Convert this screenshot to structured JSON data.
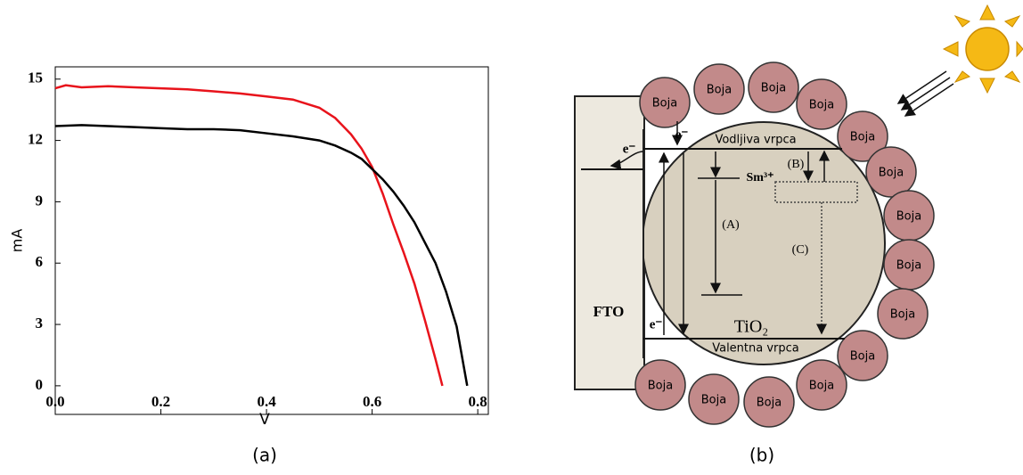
{
  "chart_data": {
    "type": "line",
    "xlabel": "V",
    "ylabel": "mA",
    "xlim": [
      0,
      0.82
    ],
    "ylim": [
      -1.4,
      15.6
    ],
    "xticks": [
      {
        "value": 0,
        "label": "0.0"
      },
      0.2,
      0.4,
      0.6,
      0.8
    ],
    "yticks": [
      0,
      3,
      6,
      9,
      12,
      15
    ],
    "grid": false,
    "series": [
      {
        "color": "#e8131b",
        "x": [
          0,
          0.02,
          0.05,
          0.1,
          0.15,
          0.2,
          0.25,
          0.3,
          0.35,
          0.4,
          0.45,
          0.5,
          0.53,
          0.56,
          0.58,
          0.6,
          0.62,
          0.64,
          0.66,
          0.68,
          0.7,
          0.72,
          0.733
        ],
        "values": [
          14.55,
          14.7,
          14.6,
          14.65,
          14.6,
          14.55,
          14.5,
          14.4,
          14.3,
          14.15,
          14.0,
          13.6,
          13.1,
          12.3,
          11.6,
          10.7,
          9.4,
          7.9,
          6.5,
          5.0,
          3.2,
          1.3,
          0
        ]
      },
      {
        "color": "#000000",
        "x": [
          0,
          0.05,
          0.1,
          0.15,
          0.2,
          0.25,
          0.3,
          0.35,
          0.4,
          0.45,
          0.5,
          0.53,
          0.56,
          0.58,
          0.6,
          0.62,
          0.64,
          0.66,
          0.68,
          0.7,
          0.72,
          0.74,
          0.76,
          0.78
        ],
        "values": [
          12.7,
          12.75,
          12.7,
          12.65,
          12.6,
          12.55,
          12.55,
          12.5,
          12.35,
          12.2,
          12.0,
          11.75,
          11.4,
          11.1,
          10.6,
          10.1,
          9.5,
          8.8,
          8.0,
          7.0,
          6.0,
          4.6,
          2.9,
          0
        ]
      }
    ]
  },
  "diagram": {
    "fto_label": "FTO",
    "dye_labels": [
      "Boja",
      "Boja",
      "Boja",
      "Boja",
      "Boja",
      "Boja",
      "Boja",
      "Boja",
      "Boja",
      "Boja",
      "Boja",
      "Boja",
      "Boja",
      "Boja"
    ],
    "electron_labels": [
      "e⁻",
      "e⁻",
      "e⁻"
    ],
    "conduction_band": "Vodljiva vrpca",
    "valence_band": "Valentna vrpca",
    "dopant": "Sm³⁺",
    "processes": [
      "(A)",
      "(B)",
      "(C)"
    ],
    "semiconductor": "TiO₂"
  },
  "panel_labels": [
    "(a)",
    "(b)"
  ]
}
